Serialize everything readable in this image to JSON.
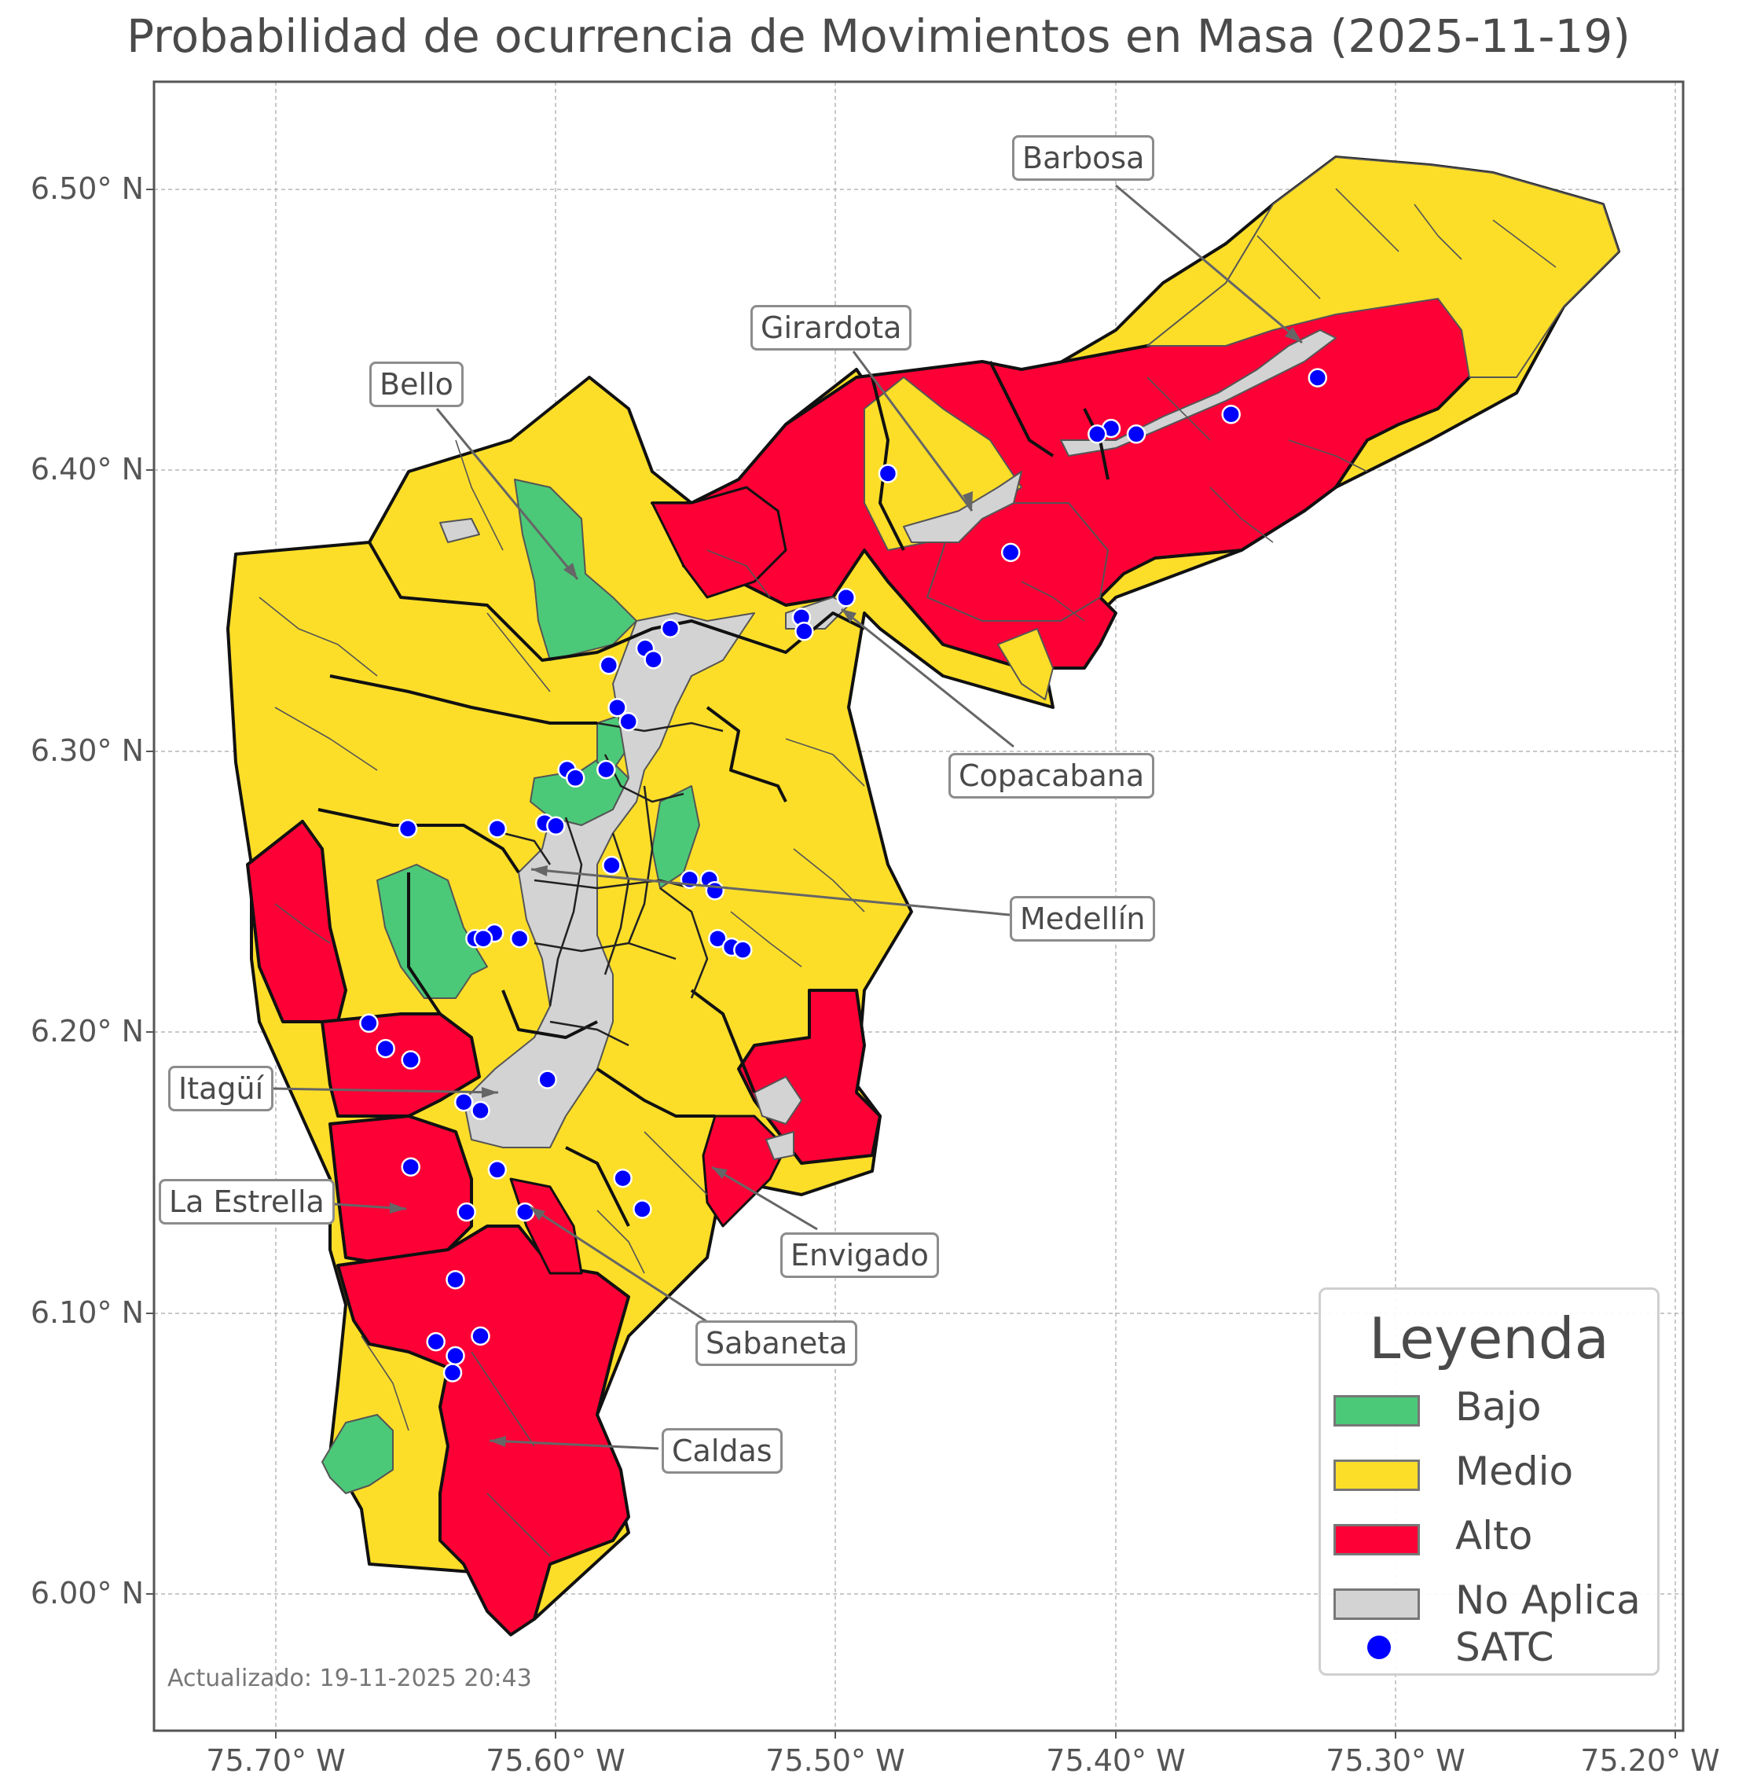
{
  "title": "Probabilidad de ocurrencia de Movimientos en Masa (2025-11-19)",
  "updated": "Actualizado: 19-11-2025 20:43",
  "axes": {
    "x_ticks": [
      "75.70° W",
      "75.60° W",
      "75.50° W",
      "75.40° W",
      "75.30° W",
      "75.20° W"
    ],
    "y_ticks": [
      "6.50° N",
      "6.40° N",
      "6.30° N",
      "6.20° N",
      "6.10° N",
      "6.00° N"
    ],
    "lon_range": [
      -75.744,
      -75.196
    ],
    "lat_range": [
      5.953,
      6.538
    ]
  },
  "colors": {
    "bajo": "#4bc978",
    "medio": "#fcde29",
    "alto": "#fc0036",
    "no_aplica": "#d3d3d3",
    "satc": "#0000ff",
    "border": "#111111",
    "inner_border": "#555555"
  },
  "legend": {
    "title": "Leyenda",
    "items": [
      {
        "label": "Bajo",
        "color": "#4bc978",
        "kind": "patch"
      },
      {
        "label": "Medio",
        "color": "#fcde29",
        "kind": "patch"
      },
      {
        "label": "Alto",
        "color": "#fc0036",
        "kind": "patch"
      },
      {
        "label": "No Aplica",
        "color": "#d3d3d3",
        "kind": "patch"
      },
      {
        "label": "SATC",
        "color": "#0000ff",
        "kind": "dot"
      }
    ]
  },
  "municipalities": [
    {
      "name": "Barbosa",
      "lon": -75.331,
      "lat": 6.445
    },
    {
      "name": "Girardota",
      "lon": -75.452,
      "lat": 6.382
    },
    {
      "name": "Bello",
      "lon": -75.592,
      "lat": 6.36
    },
    {
      "name": "Copacabana",
      "lon": -75.496,
      "lat": 6.352
    },
    {
      "name": "Medellín",
      "lon": -75.608,
      "lat": 6.258
    },
    {
      "name": "Itagüí",
      "lon": -75.62,
      "lat": 6.178
    },
    {
      "name": "La Estrella",
      "lon": -75.653,
      "lat": 6.138
    },
    {
      "name": "Envigado",
      "lon": -75.547,
      "lat": 6.153
    },
    {
      "name": "Sabaneta",
      "lon": -75.611,
      "lat": 6.139
    },
    {
      "name": "Caldas",
      "lon": -75.645,
      "lat": 6.055
    }
  ],
  "satc_stations": [
    [
      -75.327,
      6.433
    ],
    [
      -75.358,
      6.42
    ],
    [
      -75.392,
      6.413
    ],
    [
      -75.401,
      6.415
    ],
    [
      -75.406,
      6.413
    ],
    [
      -75.481,
      6.399
    ],
    [
      -75.437,
      6.371
    ],
    [
      -75.496,
      6.355
    ],
    [
      -75.512,
      6.348
    ],
    [
      -75.511,
      6.343
    ],
    [
      -75.559,
      6.344
    ],
    [
      -75.568,
      6.337
    ],
    [
      -75.565,
      6.333
    ],
    [
      -75.581,
      6.331
    ],
    [
      -75.578,
      6.316
    ],
    [
      -75.574,
      6.311
    ],
    [
      -75.596,
      6.294
    ],
    [
      -75.582,
      6.294
    ],
    [
      -75.593,
      6.291
    ],
    [
      -75.653,
      6.273
    ],
    [
      -75.621,
      6.273
    ],
    [
      -75.604,
      6.275
    ],
    [
      -75.6,
      6.274
    ],
    [
      -75.58,
      6.26
    ],
    [
      -75.552,
      6.255
    ],
    [
      -75.545,
      6.255
    ],
    [
      -75.543,
      6.251
    ],
    [
      -75.622,
      6.236
    ],
    [
      -75.629,
      6.234
    ],
    [
      -75.626,
      6.234
    ],
    [
      -75.613,
      6.234
    ],
    [
      -75.542,
      6.234
    ],
    [
      -75.537,
      6.231
    ],
    [
      -75.533,
      6.23
    ],
    [
      -75.667,
      6.204
    ],
    [
      -75.661,
      6.195
    ],
    [
      -75.652,
      6.191
    ],
    [
      -75.603,
      6.184
    ],
    [
      -75.633,
      6.176
    ],
    [
      -75.627,
      6.173
    ],
    [
      -75.652,
      6.153
    ],
    [
      -75.621,
      6.152
    ],
    [
      -75.576,
      6.149
    ],
    [
      -75.569,
      6.138
    ],
    [
      -75.611,
      6.137
    ],
    [
      -75.632,
      6.137
    ],
    [
      -75.636,
      6.113
    ],
    [
      -75.627,
      6.093
    ],
    [
      -75.643,
      6.091
    ],
    [
      -75.636,
      6.086
    ],
    [
      -75.637,
      6.08
    ]
  ]
}
